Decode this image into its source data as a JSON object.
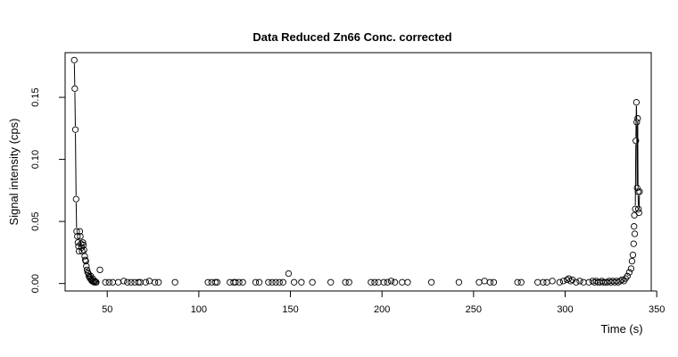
{
  "chart_data": {
    "type": "scatter",
    "title": "Data Reduced Zn66 Conc. corrected",
    "xlabel": "Time (s)",
    "ylabel": "Signal intensity (cps)",
    "xlim": [
      27,
      347
    ],
    "ylim": [
      -0.006,
      0.186
    ],
    "xticks": [
      50,
      100,
      150,
      200,
      250,
      300,
      350
    ],
    "xtick_labels": [
      "50",
      "100",
      "150",
      "200",
      "250",
      "300",
      "350"
    ],
    "yticks": [
      0.0,
      0.05,
      0.1,
      0.15
    ],
    "ytick_labels": [
      "0.00",
      "0.05",
      "0.10",
      "0.15"
    ],
    "grid": false,
    "marker": "open-circle",
    "line_segments": [
      [
        [
          32.0,
          0.18
        ],
        [
          32.3,
          0.157
        ],
        [
          32.6,
          0.124
        ],
        [
          33.0,
          0.068
        ],
        [
          33.3,
          0.042
        ],
        [
          33.7,
          0.038
        ]
      ],
      [
        [
          338.3,
          0.06
        ],
        [
          338.6,
          0.115
        ],
        [
          338.9,
          0.146
        ],
        [
          339.1,
          0.13
        ],
        [
          339.3,
          0.077
        ],
        [
          339.6,
          0.133
        ],
        [
          339.8,
          0.074
        ],
        [
          340.0,
          0.06
        ],
        [
          340.3,
          0.057
        ],
        [
          340.6,
          0.074
        ]
      ]
    ],
    "points": [
      [
        32.0,
        0.18
      ],
      [
        32.3,
        0.157
      ],
      [
        32.6,
        0.124
      ],
      [
        33.0,
        0.068
      ],
      [
        33.3,
        0.042
      ],
      [
        33.7,
        0.038
      ],
      [
        34.0,
        0.033
      ],
      [
        34.3,
        0.03
      ],
      [
        34.6,
        0.026
      ],
      [
        35.0,
        0.042
      ],
      [
        35.3,
        0.038
      ],
      [
        35.7,
        0.032
      ],
      [
        36.0,
        0.029
      ],
      [
        36.3,
        0.026
      ],
      [
        36.7,
        0.033
      ],
      [
        37.0,
        0.031
      ],
      [
        37.3,
        0.027
      ],
      [
        37.7,
        0.022
      ],
      [
        38.0,
        0.019
      ],
      [
        38.3,
        0.018
      ],
      [
        38.6,
        0.014
      ],
      [
        39.0,
        0.011
      ],
      [
        39.3,
        0.009
      ],
      [
        39.7,
        0.008
      ],
      [
        40.0,
        0.006
      ],
      [
        40.3,
        0.005
      ],
      [
        40.7,
        0.004
      ],
      [
        41.0,
        0.006
      ],
      [
        41.3,
        0.003
      ],
      [
        41.7,
        0.002
      ],
      [
        42.0,
        0.004
      ],
      [
        42.4,
        0.002
      ],
      [
        42.8,
        0.001
      ],
      [
        43.2,
        0.002
      ],
      [
        43.6,
        0.001
      ],
      [
        44.0,
        0.001
      ],
      [
        46.0,
        0.011
      ],
      [
        49.0,
        0.001
      ],
      [
        51.0,
        0.001
      ],
      [
        53.0,
        0.001
      ],
      [
        56.0,
        0.001
      ],
      [
        59.0,
        0.002
      ],
      [
        61.0,
        0.001
      ],
      [
        63.0,
        0.001
      ],
      [
        65.0,
        0.001
      ],
      [
        67.0,
        0.001
      ],
      [
        68.0,
        0.001
      ],
      [
        71.0,
        0.001
      ],
      [
        73.0,
        0.002
      ],
      [
        76.0,
        0.001
      ],
      [
        78.0,
        0.001
      ],
      [
        87.0,
        0.001
      ],
      [
        105.0,
        0.001
      ],
      [
        107.0,
        0.001
      ],
      [
        109.0,
        0.001
      ],
      [
        110.0,
        0.001
      ],
      [
        117.0,
        0.001
      ],
      [
        119.0,
        0.001
      ],
      [
        120.0,
        0.001
      ],
      [
        122.0,
        0.001
      ],
      [
        124.0,
        0.001
      ],
      [
        131.0,
        0.001
      ],
      [
        133.0,
        0.001
      ],
      [
        138.0,
        0.001
      ],
      [
        140.0,
        0.001
      ],
      [
        142.0,
        0.001
      ],
      [
        144.0,
        0.001
      ],
      [
        146.0,
        0.001
      ],
      [
        149.0,
        0.008
      ],
      [
        152.0,
        0.001
      ],
      [
        156.0,
        0.001
      ],
      [
        162.0,
        0.001
      ],
      [
        172.0,
        0.001
      ],
      [
        180.0,
        0.001
      ],
      [
        182.0,
        0.001
      ],
      [
        194.0,
        0.001
      ],
      [
        196.0,
        0.001
      ],
      [
        198.0,
        0.001
      ],
      [
        201.0,
        0.001
      ],
      [
        203.0,
        0.001
      ],
      [
        205.0,
        0.002
      ],
      [
        207.0,
        0.001
      ],
      [
        211.0,
        0.001
      ],
      [
        214.0,
        0.001
      ],
      [
        227.0,
        0.001
      ],
      [
        242.0,
        0.001
      ],
      [
        253.0,
        0.001
      ],
      [
        256.0,
        0.002
      ],
      [
        259.0,
        0.001
      ],
      [
        261.0,
        0.001
      ],
      [
        274.0,
        0.001
      ],
      [
        276.0,
        0.001
      ],
      [
        285.0,
        0.001
      ],
      [
        288.0,
        0.001
      ],
      [
        290.0,
        0.001
      ],
      [
        293.0,
        0.002
      ],
      [
        297.0,
        0.001
      ],
      [
        299.0,
        0.002
      ],
      [
        301.0,
        0.003
      ],
      [
        302.0,
        0.004
      ],
      [
        303.0,
        0.002
      ],
      [
        304.0,
        0.003
      ],
      [
        306.0,
        0.001
      ],
      [
        308.0,
        0.002
      ],
      [
        310.0,
        0.001
      ],
      [
        313.0,
        0.001
      ],
      [
        315.0,
        0.002
      ],
      [
        316.0,
        0.001
      ],
      [
        317.0,
        0.002
      ],
      [
        318.0,
        0.001
      ],
      [
        319.0,
        0.001
      ],
      [
        320.0,
        0.002
      ],
      [
        321.0,
        0.001
      ],
      [
        322.0,
        0.001
      ],
      [
        323.0,
        0.001
      ],
      [
        324.0,
        0.002
      ],
      [
        325.0,
        0.001
      ],
      [
        326.0,
        0.002
      ],
      [
        327.0,
        0.001
      ],
      [
        328.0,
        0.002
      ],
      [
        329.0,
        0.001
      ],
      [
        330.0,
        0.002
      ],
      [
        331.0,
        0.003
      ],
      [
        332.0,
        0.002
      ],
      [
        333.0,
        0.004
      ],
      [
        334.0,
        0.006
      ],
      [
        335.0,
        0.009
      ],
      [
        336.0,
        0.012
      ],
      [
        336.5,
        0.018
      ],
      [
        337.0,
        0.023
      ],
      [
        337.4,
        0.032
      ],
      [
        337.6,
        0.046
      ],
      [
        337.8,
        0.055
      ],
      [
        338.0,
        0.04
      ],
      [
        338.3,
        0.06
      ],
      [
        338.6,
        0.115
      ],
      [
        338.9,
        0.146
      ],
      [
        339.1,
        0.13
      ],
      [
        339.3,
        0.077
      ],
      [
        339.6,
        0.133
      ],
      [
        339.8,
        0.074
      ],
      [
        340.0,
        0.06
      ],
      [
        340.3,
        0.057
      ],
      [
        340.6,
        0.074
      ]
    ]
  }
}
